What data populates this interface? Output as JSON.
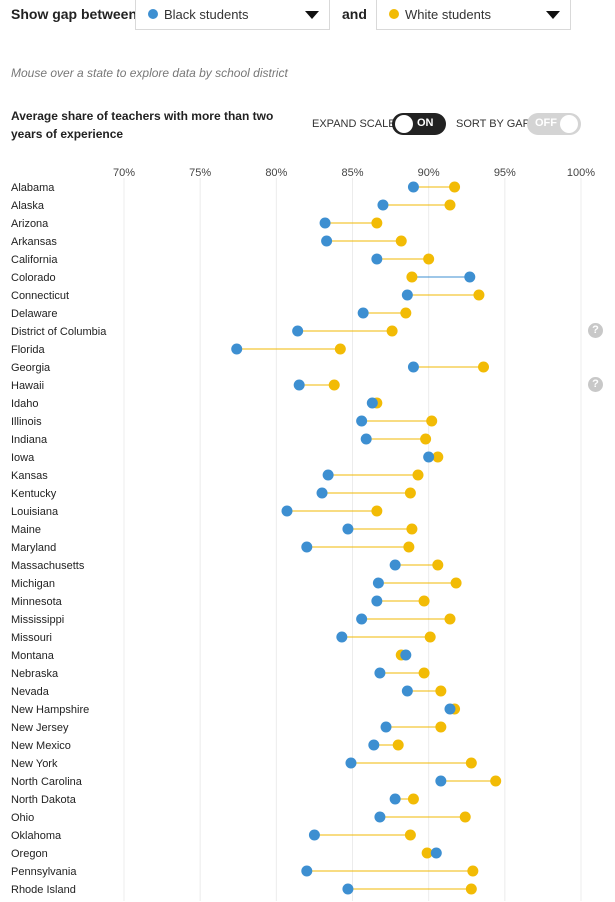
{
  "controls": {
    "show_gap_label": "Show gap between",
    "and_label": "and",
    "group_a": {
      "label": "Black students",
      "color": "#3d8fd1"
    },
    "group_b": {
      "label": "White students",
      "color": "#f2bb05"
    },
    "hint": "Mouse over a state to explore data by school district",
    "expand_scale_label": "EXPAND SCALE",
    "expand_scale_state": "ON",
    "sort_by_gap_label": "SORT BY GAP",
    "sort_by_gap_state": "OFF",
    "help_glyph": "?"
  },
  "chart_data": {
    "type": "dot-range",
    "title": "Average share of teachers with more than two years of experience",
    "xlim": [
      70,
      100
    ],
    "xticks": [
      70,
      75,
      80,
      85,
      90,
      95,
      100
    ],
    "tick_labels": [
      "70%",
      "75%",
      "80%",
      "85%",
      "90%",
      "95%",
      "100%"
    ],
    "grid": true,
    "series": [
      {
        "name": "Black students",
        "color": "#3d8fd1"
      },
      {
        "name": "White students",
        "color": "#f2bb05"
      }
    ],
    "rows": [
      {
        "state": "Alabama",
        "a": 89.0,
        "b": 91.7
      },
      {
        "state": "Alaska",
        "a": 87.0,
        "b": 91.4
      },
      {
        "state": "Arizona",
        "a": 83.2,
        "b": 86.6
      },
      {
        "state": "Arkansas",
        "a": 83.3,
        "b": 88.2
      },
      {
        "state": "California",
        "a": 86.6,
        "b": 90.0
      },
      {
        "state": "Colorado",
        "a": 92.7,
        "b": 88.9
      },
      {
        "state": "Connecticut",
        "a": 88.6,
        "b": 93.3
      },
      {
        "state": "Delaware",
        "a": 85.7,
        "b": 88.5
      },
      {
        "state": "District of Columbia",
        "a": 81.4,
        "b": 87.6,
        "help": true
      },
      {
        "state": "Florida",
        "a": 77.4,
        "b": 84.2
      },
      {
        "state": "Georgia",
        "a": 89.0,
        "b": 93.6
      },
      {
        "state": "Hawaii",
        "a": 81.5,
        "b": 83.8,
        "help": true
      },
      {
        "state": "Idaho",
        "a": 86.3,
        "b": 86.6
      },
      {
        "state": "Illinois",
        "a": 85.6,
        "b": 90.2
      },
      {
        "state": "Indiana",
        "a": 85.9,
        "b": 89.8
      },
      {
        "state": "Iowa",
        "a": 90.0,
        "b": 90.6
      },
      {
        "state": "Kansas",
        "a": 83.4,
        "b": 89.3
      },
      {
        "state": "Kentucky",
        "a": 83.0,
        "b": 88.8
      },
      {
        "state": "Louisiana",
        "a": 80.7,
        "b": 86.6
      },
      {
        "state": "Maine",
        "a": 84.7,
        "b": 88.9
      },
      {
        "state": "Maryland",
        "a": 82.0,
        "b": 88.7
      },
      {
        "state": "Massachusetts",
        "a": 87.8,
        "b": 90.6
      },
      {
        "state": "Michigan",
        "a": 86.7,
        "b": 91.8
      },
      {
        "state": "Minnesota",
        "a": 86.6,
        "b": 89.7
      },
      {
        "state": "Mississippi",
        "a": 85.6,
        "b": 91.4
      },
      {
        "state": "Missouri",
        "a": 84.3,
        "b": 90.1
      },
      {
        "state": "Montana",
        "a": 88.5,
        "b": 88.2
      },
      {
        "state": "Nebraska",
        "a": 86.8,
        "b": 89.7
      },
      {
        "state": "Nevada",
        "a": 88.6,
        "b": 90.8
      },
      {
        "state": "New Hampshire",
        "a": 91.4,
        "b": 91.7
      },
      {
        "state": "New Jersey",
        "a": 87.2,
        "b": 90.8
      },
      {
        "state": "New Mexico",
        "a": 86.4,
        "b": 88.0
      },
      {
        "state": "New York",
        "a": 84.9,
        "b": 92.8
      },
      {
        "state": "North Carolina",
        "a": 90.8,
        "b": 94.4
      },
      {
        "state": "North Dakota",
        "a": 87.8,
        "b": 89.0
      },
      {
        "state": "Ohio",
        "a": 86.8,
        "b": 92.4
      },
      {
        "state": "Oklahoma",
        "a": 82.5,
        "b": 88.8
      },
      {
        "state": "Oregon",
        "a": 90.5,
        "b": 89.9
      },
      {
        "state": "Pennsylvania",
        "a": 82.0,
        "b": 92.9
      },
      {
        "state": "Rhode Island",
        "a": 84.7,
        "b": 92.8
      }
    ]
  }
}
